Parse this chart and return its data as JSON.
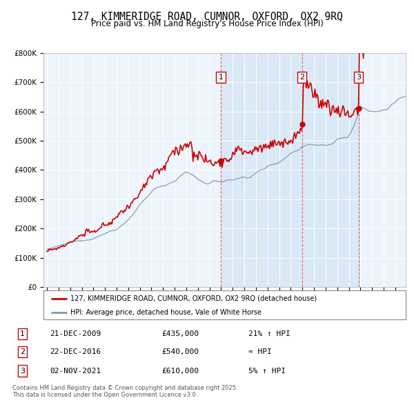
{
  "title": "127, KIMMERIDGE ROAD, CUMNOR, OXFORD, OX2 9RQ",
  "subtitle": "Price paid vs. HM Land Registry's House Price Index (HPI)",
  "legend_label_red": "127, KIMMERIDGE ROAD, CUMNOR, OXFORD, OX2 9RQ (detached house)",
  "legend_label_blue": "HPI: Average price, detached house, Vale of White Horse",
  "transactions": [
    {
      "num": 1,
      "date": "21-DEC-2009",
      "price": 435000,
      "note": "21% ↑ HPI",
      "x_year": 2009.97
    },
    {
      "num": 2,
      "date": "22-DEC-2016",
      "price": 540000,
      "note": "≈ HPI",
      "x_year": 2016.97
    },
    {
      "num": 3,
      "date": "02-NOV-2021",
      "price": 610000,
      "note": "5% ↑ HPI",
      "x_year": 2021.84
    }
  ],
  "footer_line1": "Contains HM Land Registry data © Crown copyright and database right 2025.",
  "footer_line2": "This data is licensed under the Open Government Licence v3.0.",
  "red_color": "#cc0000",
  "blue_color": "#7799bb",
  "shade_color": "#ddeeff",
  "background_color": "#eef4fb",
  "ylim": [
    0,
    800000
  ],
  "xlim_start": 1994.7,
  "xlim_end": 2025.9
}
